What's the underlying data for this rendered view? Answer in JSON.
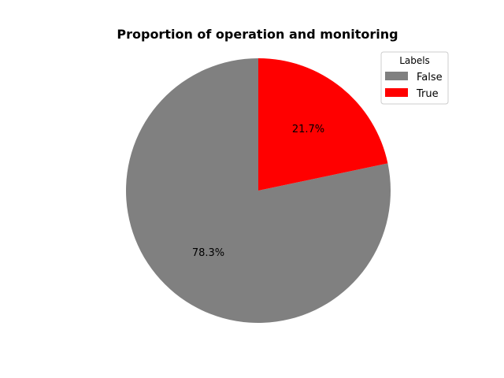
{
  "chart_data": {
    "type": "pie",
    "title": "Proportion of operation and monitoring",
    "slices": [
      {
        "label": "False",
        "value": 78.3,
        "pct_label": "78.3%",
        "color": "#808080"
      },
      {
        "label": "True",
        "value": 21.7,
        "pct_label": "21.7%",
        "color": "#ff0000"
      }
    ],
    "start_angle_deg": 90,
    "direction": "counterclockwise",
    "legend": {
      "title": "Labels",
      "position": "top-right",
      "entries": [
        "False",
        "True"
      ]
    }
  }
}
